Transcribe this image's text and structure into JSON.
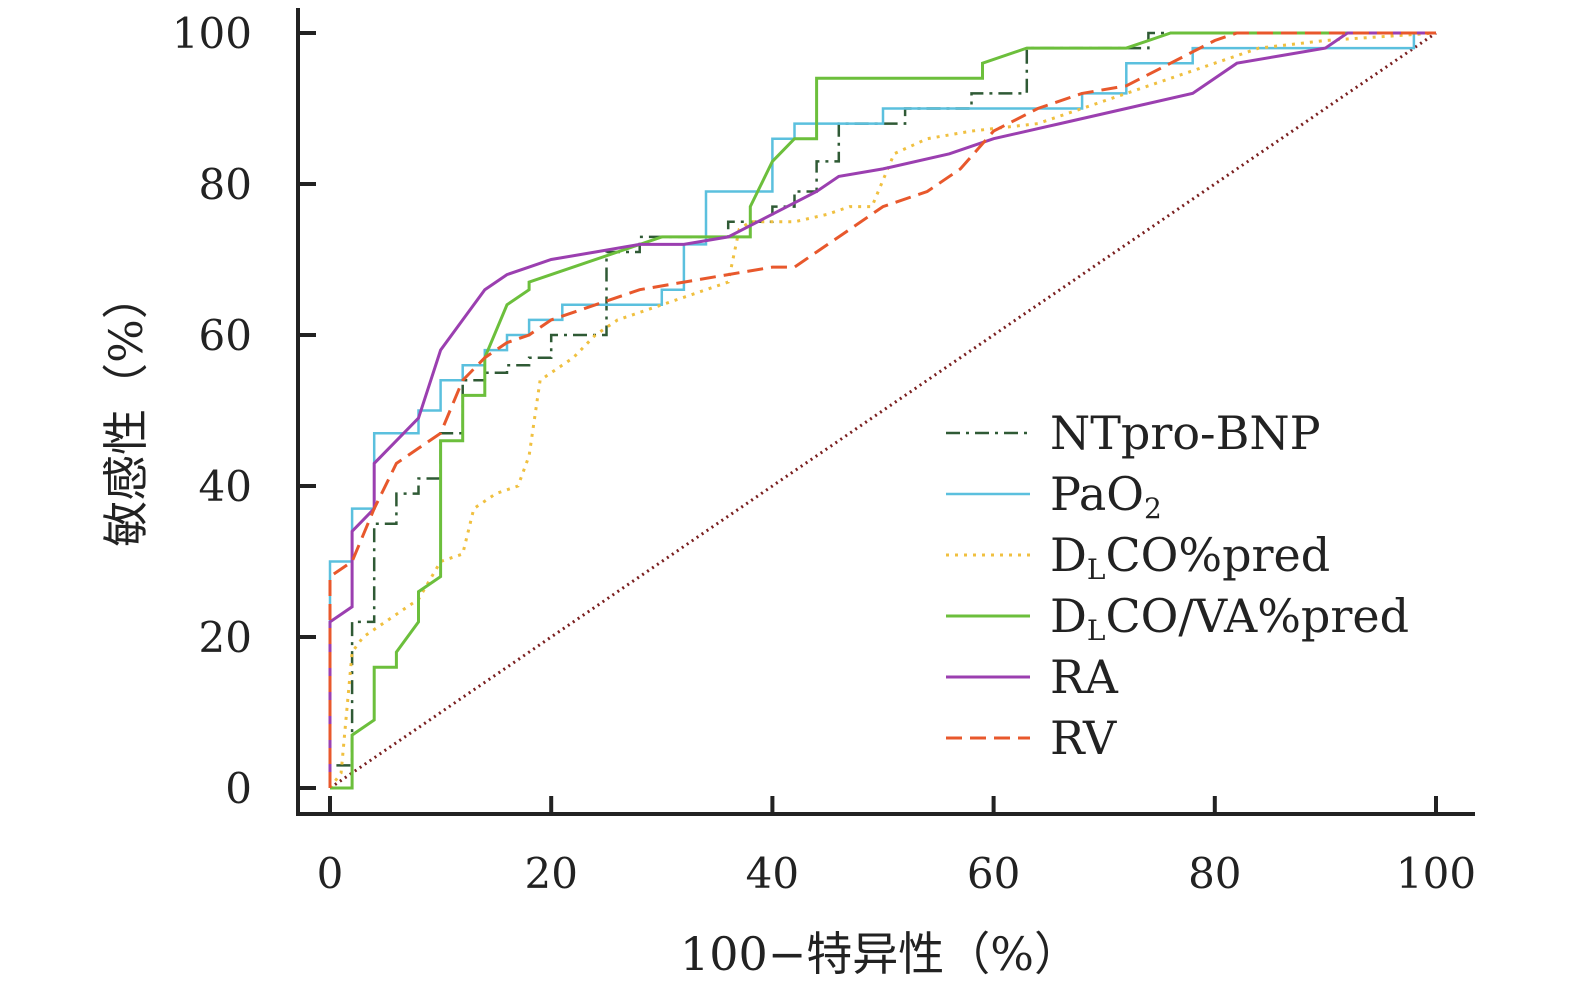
{
  "chart_data": {
    "type": "line",
    "title": "",
    "xlabel": "100−特异性（%）",
    "ylabel": "敏感性（%）",
    "xlim": [
      0,
      100
    ],
    "ylim": [
      0,
      100
    ],
    "x_ticks": [
      "0",
      "20",
      "40",
      "60",
      "80",
      "100"
    ],
    "y_ticks": [
      "0",
      "20",
      "40",
      "60",
      "80",
      "100"
    ],
    "grid": false,
    "legend_position": "bottom-right",
    "reference_line": {
      "x": [
        0,
        100
      ],
      "y": [
        0,
        100
      ],
      "color": "#7a1f1f"
    },
    "series": [
      {
        "name": "NTpro-BNP",
        "name_base": "NTpro-BNP",
        "name_sub": "",
        "name_tail": "",
        "color": "#2f5a35",
        "dash": "14,6,3,6",
        "width": 2.5,
        "x": [
          0,
          0,
          2,
          2,
          4,
          4,
          6,
          6,
          8,
          8,
          10,
          10,
          12,
          12,
          14,
          14,
          16,
          16,
          18,
          18,
          20,
          20,
          25,
          25,
          28,
          28,
          32,
          32,
          36,
          36,
          40,
          40,
          42,
          42,
          44,
          44,
          46,
          46,
          50,
          50,
          52,
          52,
          58,
          58,
          63,
          63,
          67,
          67,
          74,
          74,
          80,
          80,
          100
        ],
        "y": [
          0,
          3,
          3,
          22,
          22,
          35,
          35,
          39,
          39,
          41,
          41,
          47,
          47,
          54,
          54,
          55,
          55,
          56,
          56,
          57,
          57,
          60,
          60,
          71,
          71,
          73,
          73,
          73,
          73,
          75,
          75,
          77,
          77,
          79,
          79,
          83,
          83,
          88,
          88,
          88,
          88,
          90,
          90,
          92,
          92,
          98,
          98,
          98,
          98,
          100,
          100,
          100,
          100
        ]
      },
      {
        "name": "PaO2",
        "name_base": "PaO",
        "name_sub": "2",
        "name_tail": "",
        "color": "#5bc0de",
        "dash": "",
        "width": 2.5,
        "x": [
          0,
          0,
          2,
          2,
          4,
          4,
          6,
          6,
          8,
          8,
          10,
          10,
          12,
          12,
          14,
          14,
          16,
          16,
          18,
          18,
          21,
          21,
          30,
          30,
          32,
          32,
          34,
          34,
          40,
          40,
          42,
          42,
          50,
          50,
          56,
          56,
          68,
          68,
          72,
          72,
          78,
          78,
          98,
          98,
          100
        ],
        "y": [
          0,
          30,
          30,
          37,
          37,
          47,
          47,
          47,
          47,
          50,
          50,
          54,
          54,
          56,
          56,
          58,
          58,
          60,
          60,
          62,
          62,
          64,
          64,
          66,
          66,
          72,
          72,
          79,
          79,
          86,
          86,
          88,
          88,
          90,
          90,
          90,
          90,
          92,
          92,
          96,
          96,
          98,
          98,
          100,
          100
        ]
      },
      {
        "name": "DLCO%pred",
        "name_base": "D",
        "name_sub": "L",
        "name_tail": "CO%pred",
        "color": "#f0c040",
        "dash": "3,6",
        "width": 3,
        "x": [
          0,
          1,
          2,
          3,
          5,
          7,
          8,
          10,
          12,
          13,
          15,
          17,
          18,
          19,
          20,
          22,
          24,
          26,
          28,
          30,
          32,
          34,
          36,
          37,
          38,
          40,
          42,
          45,
          47,
          49,
          51,
          54,
          58,
          64,
          68,
          72,
          76,
          80,
          84,
          90,
          100
        ],
        "y": [
          0,
          2,
          18,
          20,
          22,
          24,
          25,
          30,
          31,
          37,
          39,
          40,
          44,
          54,
          55,
          57,
          60,
          62,
          63,
          64,
          65,
          66,
          67,
          74,
          75,
          75,
          75,
          76,
          77,
          77,
          84,
          86,
          87,
          88,
          90,
          92,
          94,
          96,
          98,
          99,
          100
        ]
      },
      {
        "name": "DLCO/VA%pred",
        "name_base": "D",
        "name_sub": "L",
        "name_tail": "CO/VA%pred",
        "color": "#6cbf3c",
        "dash": "",
        "width": 3,
        "x": [
          0,
          2,
          2,
          4,
          4,
          6,
          6,
          8,
          8,
          10,
          10,
          12,
          12,
          14,
          14,
          16,
          18,
          18,
          20,
          30,
          36,
          36,
          38,
          38,
          40,
          42,
          44,
          44,
          59,
          59,
          63,
          63,
          72,
          76,
          80,
          100
        ],
        "y": [
          0,
          0,
          7,
          9,
          16,
          16,
          18,
          22,
          26,
          28,
          46,
          46,
          52,
          52,
          57,
          64,
          66,
          67,
          68,
          73,
          73,
          73,
          73,
          77,
          83,
          86,
          86,
          94,
          94,
          96,
          98,
          98,
          98,
          100,
          100,
          100
        ]
      },
      {
        "name": "RA",
        "name_base": "RA",
        "name_sub": "",
        "name_tail": "",
        "color": "#9b3fb0",
        "dash": "",
        "width": 3,
        "x": [
          0,
          0,
          2,
          2,
          4,
          4,
          6,
          8,
          10,
          12,
          14,
          16,
          18,
          20,
          24,
          28,
          32,
          36,
          40,
          44,
          46,
          50,
          56,
          60,
          66,
          72,
          78,
          82,
          86,
          90,
          92,
          100
        ],
        "y": [
          0,
          22,
          24,
          34,
          37,
          43,
          46,
          49,
          58,
          62,
          66,
          68,
          69,
          70,
          71,
          72,
          72,
          73,
          76,
          79,
          81,
          82,
          84,
          86,
          88,
          90,
          92,
          96,
          97,
          98,
          100,
          100
        ]
      },
      {
        "name": "RV",
        "name_base": "RV",
        "name_sub": "",
        "name_tail": "",
        "color": "#e8582c",
        "dash": "16,8",
        "width": 3,
        "x": [
          0,
          0,
          2,
          4,
          6,
          8,
          10,
          12,
          14,
          16,
          18,
          20,
          24,
          28,
          32,
          36,
          40,
          42,
          44,
          46,
          50,
          54,
          57,
          60,
          64,
          68,
          72,
          76,
          80,
          82,
          84,
          100
        ],
        "y": [
          0,
          28,
          30,
          37,
          43,
          45,
          47,
          54,
          57,
          59,
          60,
          62,
          64,
          66,
          67,
          68,
          69,
          69,
          71,
          73,
          77,
          79,
          82,
          87,
          90,
          92,
          93,
          96,
          99,
          100,
          100,
          100
        ]
      }
    ]
  }
}
